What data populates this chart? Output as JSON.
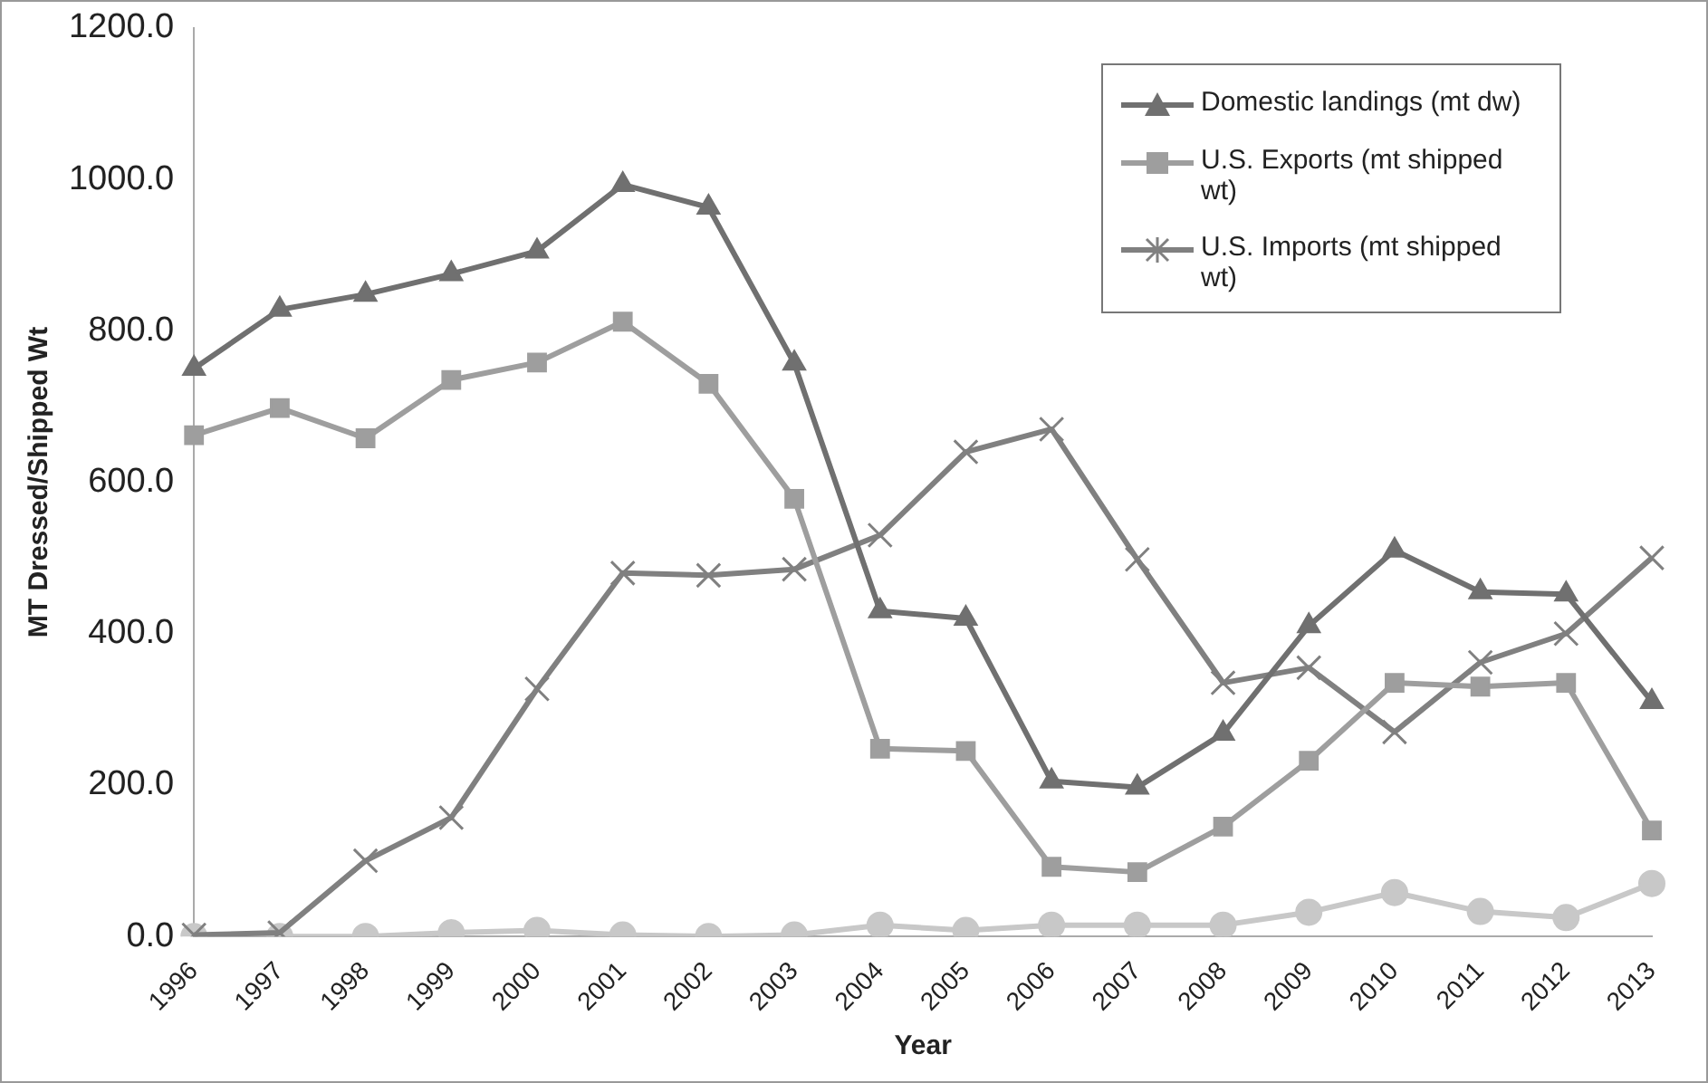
{
  "chart_data": {
    "type": "line",
    "xlabel": "Year",
    "ylabel": "MT Dressed/Shipped Wt",
    "categories": [
      "1996",
      "1997",
      "1998",
      "1999",
      "2000",
      "2001",
      "2002",
      "2003",
      "2004",
      "2005",
      "2006",
      "2007",
      "2008",
      "2009",
      "2010",
      "2011",
      "2012",
      "2013"
    ],
    "series": [
      {
        "name": "Domestic landings (mt dw)",
        "color": "#707070",
        "marker": "triangle",
        "values": [
          750,
          828,
          848,
          875,
          905,
          993,
          963,
          757,
          430,
          420,
          205,
          197,
          268,
          410,
          510,
          455,
          452,
          310
        ]
      },
      {
        "name": "U.S. Exports (mt shipped wt)",
        "color": "#9e9e9e",
        "marker": "square",
        "values": [
          662,
          698,
          658,
          735,
          758,
          812,
          730,
          578,
          248,
          245,
          92,
          85,
          145,
          232,
          335,
          330,
          335,
          140
        ]
      },
      {
        "name": "U.S. Imports (mt shipped wt)",
        "color": "#808080",
        "marker": "cross",
        "values": [
          2,
          5,
          100,
          157,
          327,
          480,
          477,
          485,
          530,
          640,
          670,
          498,
          335,
          355,
          270,
          362,
          400,
          500
        ]
      },
      {
        "color": "#c8c8c8",
        "marker": "circle",
        "values": [
          0,
          0,
          0,
          5,
          8,
          2,
          0,
          2,
          15,
          8,
          15,
          15,
          15,
          32,
          58,
          33,
          25,
          70
        ]
      }
    ],
    "ylim": [
      0,
      1200
    ],
    "yticks": [
      {
        "value": 0,
        "label": "0.0"
      },
      {
        "value": 200,
        "label": "200.0"
      },
      {
        "value": 400,
        "label": "400.0"
      },
      {
        "value": 600,
        "label": "600.0"
      },
      {
        "value": 800,
        "label": "800.0"
      },
      {
        "value": 1000,
        "label": "1000.0"
      },
      {
        "value": 1200,
        "label": "1200.0"
      }
    ],
    "grid": false,
    "legend": "top right"
  }
}
